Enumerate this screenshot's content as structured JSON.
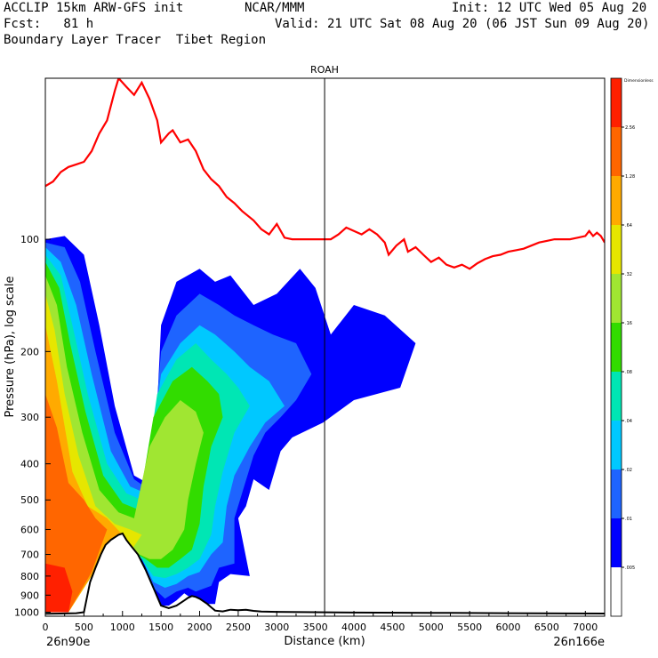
{
  "header": {
    "model_line": "ACCLIP 15km ARW-GFS init",
    "org": "NCAR/MMM",
    "init": "Init: 12 UTC Wed 05 Aug 20",
    "fcst": "Fcst:   81 h",
    "valid": "Valid: 21 UTC Sat 08 Aug 20 (06 JST Sun 09 Aug 20)",
    "product": "Boundary Layer Tracer  Tibet Region"
  },
  "chart_data": {
    "type": "heatmap",
    "title": "ROAH",
    "xlabel": "Distance (km)",
    "ylabel": "Pressure (hPa), log scale",
    "xlim": [
      0,
      7250
    ],
    "ylim": [
      1025,
      37
    ],
    "y_scale": "log",
    "x_ticks": [
      0,
      500,
      1000,
      1500,
      2000,
      2500,
      3000,
      3500,
      4000,
      4500,
      5000,
      5500,
      6000,
      6500,
      7000
    ],
    "y_ticks": [
      100,
      200,
      300,
      400,
      500,
      600,
      700,
      800,
      900,
      1000
    ],
    "start_label": "26n90e",
    "end_label": "26n166e",
    "vertical_line_x": 3620,
    "colorbar": {
      "top_label": "Dimensionless",
      "levels": [
        ".005",
        ".01",
        ".02",
        ".04",
        ".08",
        ".16",
        ".32",
        ".64",
        "1.28",
        "2.56"
      ],
      "colors": [
        "#ffffff",
        "#0000ff",
        "#1e64ff",
        "#00c8ff",
        "#00e6b4",
        "#32dc00",
        "#a0e632",
        "#e6e600",
        "#ffaa00",
        "#ff6600",
        "#ff2000"
      ]
    },
    "tropopause_color": "#ff0000",
    "terrain_color": "#000000",
    "tropopause": [
      [
        0,
        72
      ],
      [
        100,
        70
      ],
      [
        200,
        66
      ],
      [
        300,
        64
      ],
      [
        400,
        63
      ],
      [
        500,
        62
      ],
      [
        600,
        58
      ],
      [
        700,
        52
      ],
      [
        800,
        48
      ],
      [
        900,
        40
      ],
      [
        950,
        37
      ],
      [
        1050,
        39
      ],
      [
        1150,
        41
      ],
      [
        1250,
        38
      ],
      [
        1350,
        42
      ],
      [
        1450,
        48
      ],
      [
        1500,
        55
      ],
      [
        1600,
        52
      ],
      [
        1650,
        51
      ],
      [
        1750,
        55
      ],
      [
        1850,
        54
      ],
      [
        1950,
        58
      ],
      [
        2050,
        65
      ],
      [
        2150,
        69
      ],
      [
        2250,
        72
      ],
      [
        2350,
        77
      ],
      [
        2450,
        80
      ],
      [
        2550,
        84
      ],
      [
        2700,
        89
      ],
      [
        2800,
        94
      ],
      [
        2900,
        97
      ],
      [
        3000,
        91
      ],
      [
        3100,
        99
      ],
      [
        3200,
        100
      ],
      [
        3300,
        100
      ],
      [
        3400,
        100
      ],
      [
        3500,
        100
      ],
      [
        3600,
        100
      ],
      [
        3700,
        100
      ],
      [
        3800,
        97
      ],
      [
        3900,
        93
      ],
      [
        4000,
        95
      ],
      [
        4100,
        97
      ],
      [
        4200,
        94
      ],
      [
        4300,
        97
      ],
      [
        4400,
        102
      ],
      [
        4450,
        110
      ],
      [
        4550,
        104
      ],
      [
        4650,
        100
      ],
      [
        4700,
        108
      ],
      [
        4800,
        105
      ],
      [
        4900,
        110
      ],
      [
        5000,
        115
      ],
      [
        5100,
        112
      ],
      [
        5200,
        117
      ],
      [
        5300,
        119
      ],
      [
        5400,
        117
      ],
      [
        5500,
        120
      ],
      [
        5600,
        116
      ],
      [
        5700,
        113
      ],
      [
        5800,
        111
      ],
      [
        5900,
        110
      ],
      [
        6000,
        108
      ],
      [
        6100,
        107
      ],
      [
        6200,
        106
      ],
      [
        6300,
        104
      ],
      [
        6400,
        102
      ],
      [
        6500,
        101
      ],
      [
        6600,
        100
      ],
      [
        6700,
        100
      ],
      [
        6800,
        100
      ],
      [
        6900,
        99
      ],
      [
        7000,
        98
      ],
      [
        7050,
        95
      ],
      [
        7100,
        98
      ],
      [
        7150,
        96
      ],
      [
        7200,
        98
      ],
      [
        7250,
        102
      ]
    ],
    "terrain": [
      [
        0,
        1010
      ],
      [
        200,
        1008
      ],
      [
        400,
        1006
      ],
      [
        500,
        1000
      ],
      [
        580,
        830
      ],
      [
        650,
        760
      ],
      [
        720,
        700
      ],
      [
        780,
        660
      ],
      [
        850,
        640
      ],
      [
        950,
        620
      ],
      [
        1000,
        615
      ],
      [
        1050,
        640
      ],
      [
        1100,
        660
      ],
      [
        1200,
        700
      ],
      [
        1300,
        770
      ],
      [
        1400,
        860
      ],
      [
        1500,
        960
      ],
      [
        1600,
        975
      ],
      [
        1700,
        960
      ],
      [
        1800,
        930
      ],
      [
        1850,
        915
      ],
      [
        1900,
        905
      ],
      [
        1950,
        910
      ],
      [
        2000,
        920
      ],
      [
        2100,
        950
      ],
      [
        2150,
        970
      ],
      [
        2200,
        990
      ],
      [
        2300,
        995
      ],
      [
        2400,
        985
      ],
      [
        2500,
        988
      ],
      [
        2600,
        985
      ],
      [
        2700,
        992
      ],
      [
        2800,
        996
      ],
      [
        3000,
        998
      ],
      [
        3500,
        1000
      ],
      [
        4000,
        1002
      ],
      [
        5000,
        1004
      ],
      [
        6000,
        1006
      ],
      [
        7250,
        1008
      ]
    ],
    "contour_levels": [
      [
        [
          0,
          100
        ],
        [
          250,
          98
        ],
        [
          500,
          110
        ],
        [
          700,
          170
        ],
        [
          900,
          280
        ],
        [
          1150,
          430
        ],
        [
          1400,
          460
        ],
        [
          1500,
          170
        ],
        [
          1700,
          130
        ],
        [
          2000,
          120
        ],
        [
          2200,
          130
        ],
        [
          2400,
          125
        ],
        [
          2700,
          150
        ],
        [
          3000,
          140
        ],
        [
          3300,
          120
        ],
        [
          3500,
          135
        ],
        [
          3700,
          180
        ],
        [
          4000,
          150
        ],
        [
          4400,
          160
        ],
        [
          4800,
          190
        ],
        [
          4600,
          250
        ],
        [
          4000,
          270
        ],
        [
          3600,
          310
        ],
        [
          3200,
          340
        ],
        [
          3050,
          370
        ],
        [
          2900,
          470
        ],
        [
          2700,
          440
        ],
        [
          2600,
          520
        ],
        [
          2500,
          560
        ],
        [
          2650,
          800
        ],
        [
          2400,
          790
        ],
        [
          2250,
          830
        ],
        [
          2200,
          950
        ],
        [
          2000,
          950
        ],
        [
          1800,
          890
        ],
        [
          1700,
          930
        ],
        [
          1600,
          960
        ],
        [
          1480,
          960
        ],
        [
          1350,
          870
        ],
        [
          1200,
          700
        ],
        [
          1050,
          640
        ],
        [
          900,
          620
        ],
        [
          600,
          700
        ],
        [
          300,
          1000
        ],
        [
          0,
          1000
        ]
      ],
      [
        [
          0,
          102
        ],
        [
          250,
          105
        ],
        [
          450,
          130
        ],
        [
          650,
          200
        ],
        [
          900,
          330
        ],
        [
          1150,
          440
        ],
        [
          1350,
          470
        ],
        [
          1500,
          200
        ],
        [
          1700,
          160
        ],
        [
          2000,
          140
        ],
        [
          2250,
          150
        ],
        [
          2450,
          160
        ],
        [
          2700,
          170
        ],
        [
          2950,
          180
        ],
        [
          3250,
          190
        ],
        [
          3450,
          230
        ],
        [
          3250,
          270
        ],
        [
          3050,
          300
        ],
        [
          2850,
          330
        ],
        [
          2700,
          380
        ],
        [
          2550,
          480
        ],
        [
          2450,
          560
        ],
        [
          2450,
          740
        ],
        [
          2250,
          760
        ],
        [
          2150,
          850
        ],
        [
          1950,
          880
        ],
        [
          1850,
          860
        ],
        [
          1700,
          880
        ],
        [
          1550,
          920
        ],
        [
          1400,
          860
        ],
        [
          1250,
          710
        ],
        [
          1050,
          650
        ],
        [
          800,
          640
        ],
        [
          550,
          720
        ],
        [
          300,
          1000
        ],
        [
          0,
          1000
        ]
      ],
      [
        [
          0,
          105
        ],
        [
          200,
          115
        ],
        [
          400,
          150
        ],
        [
          600,
          230
        ],
        [
          850,
          370
        ],
        [
          1100,
          460
        ],
        [
          1300,
          480
        ],
        [
          1500,
          230
        ],
        [
          1750,
          190
        ],
        [
          2000,
          170
        ],
        [
          2200,
          180
        ],
        [
          2450,
          200
        ],
        [
          2650,
          220
        ],
        [
          2900,
          240
        ],
        [
          3100,
          280
        ],
        [
          2850,
          310
        ],
        [
          2650,
          360
        ],
        [
          2450,
          430
        ],
        [
          2350,
          520
        ],
        [
          2300,
          650
        ],
        [
          2150,
          700
        ],
        [
          2000,
          780
        ],
        [
          1850,
          800
        ],
        [
          1700,
          840
        ],
        [
          1550,
          860
        ],
        [
          1400,
          830
        ],
        [
          1250,
          720
        ],
        [
          1050,
          660
        ],
        [
          800,
          650
        ],
        [
          550,
          730
        ],
        [
          300,
          1000
        ],
        [
          0,
          1000
        ]
      ],
      [
        [
          0,
          110
        ],
        [
          200,
          125
        ],
        [
          350,
          170
        ],
        [
          550,
          260
        ],
        [
          800,
          400
        ],
        [
          1050,
          480
        ],
        [
          1250,
          500
        ],
        [
          1450,
          260
        ],
        [
          1700,
          210
        ],
        [
          1950,
          190
        ],
        [
          2150,
          210
        ],
        [
          2350,
          230
        ],
        [
          2500,
          250
        ],
        [
          2650,
          280
        ],
        [
          2450,
          330
        ],
        [
          2300,
          420
        ],
        [
          2200,
          520
        ],
        [
          2150,
          620
        ],
        [
          2000,
          720
        ],
        [
          1850,
          760
        ],
        [
          1700,
          790
        ],
        [
          1550,
          810
        ],
        [
          1400,
          800
        ],
        [
          1250,
          720
        ],
        [
          1050,
          670
        ],
        [
          800,
          660
        ],
        [
          550,
          740
        ],
        [
          300,
          1000
        ],
        [
          0,
          1000
        ]
      ],
      [
        [
          0,
          115
        ],
        [
          180,
          135
        ],
        [
          320,
          190
        ],
        [
          520,
          290
        ],
        [
          750,
          430
        ],
        [
          1000,
          510
        ],
        [
          1200,
          530
        ],
        [
          1400,
          300
        ],
        [
          1650,
          240
        ],
        [
          1900,
          220
        ],
        [
          2100,
          240
        ],
        [
          2250,
          260
        ],
        [
          2300,
          300
        ],
        [
          2150,
          360
        ],
        [
          2050,
          460
        ],
        [
          2000,
          580
        ],
        [
          1900,
          680
        ],
        [
          1750,
          720
        ],
        [
          1600,
          760
        ],
        [
          1450,
          760
        ],
        [
          1300,
          720
        ],
        [
          1100,
          680
        ],
        [
          850,
          670
        ],
        [
          600,
          750
        ],
        [
          300,
          1000
        ],
        [
          0,
          1000
        ]
      ],
      [
        [
          0,
          125
        ],
        [
          150,
          150
        ],
        [
          280,
          220
        ],
        [
          480,
          330
        ],
        [
          700,
          470
        ],
        [
          950,
          540
        ],
        [
          1150,
          560
        ],
        [
          1350,
          360
        ],
        [
          1550,
          300
        ],
        [
          1750,
          270
        ],
        [
          1950,
          290
        ],
        [
          2050,
          330
        ],
        [
          1950,
          400
        ],
        [
          1850,
          500
        ],
        [
          1800,
          600
        ],
        [
          1650,
          680
        ],
        [
          1500,
          720
        ],
        [
          1350,
          720
        ],
        [
          1150,
          690
        ],
        [
          900,
          680
        ],
        [
          650,
          760
        ],
        [
          300,
          1000
        ],
        [
          0,
          1000
        ]
      ],
      [
        [
          0,
          140
        ],
        [
          120,
          175
        ],
        [
          250,
          260
        ],
        [
          430,
          380
        ],
        [
          650,
          520
        ],
        [
          900,
          580
        ],
        [
          1100,
          600
        ],
        [
          1250,
          620
        ],
        [
          1100,
          690
        ],
        [
          900,
          690
        ],
        [
          650,
          770
        ],
        [
          300,
          1000
        ],
        [
          0,
          1000
        ]
      ],
      [
        [
          0,
          170
        ],
        [
          150,
          240
        ],
        [
          350,
          420
        ],
        [
          550,
          520
        ],
        [
          800,
          560
        ],
        [
          1000,
          620
        ],
        [
          900,
          680
        ],
        [
          650,
          770
        ],
        [
          300,
          1000
        ],
        [
          0,
          1000
        ]
      ],
      [
        [
          0,
          260
        ],
        [
          150,
          320
        ],
        [
          300,
          450
        ],
        [
          500,
          500
        ],
        [
          650,
          560
        ],
        [
          800,
          600
        ],
        [
          600,
          780
        ],
        [
          300,
          1000
        ],
        [
          0,
          1000
        ]
      ],
      [
        [
          0,
          740
        ],
        [
          250,
          760
        ],
        [
          350,
          880
        ],
        [
          300,
          1000
        ],
        [
          0,
          1000
        ]
      ]
    ]
  }
}
